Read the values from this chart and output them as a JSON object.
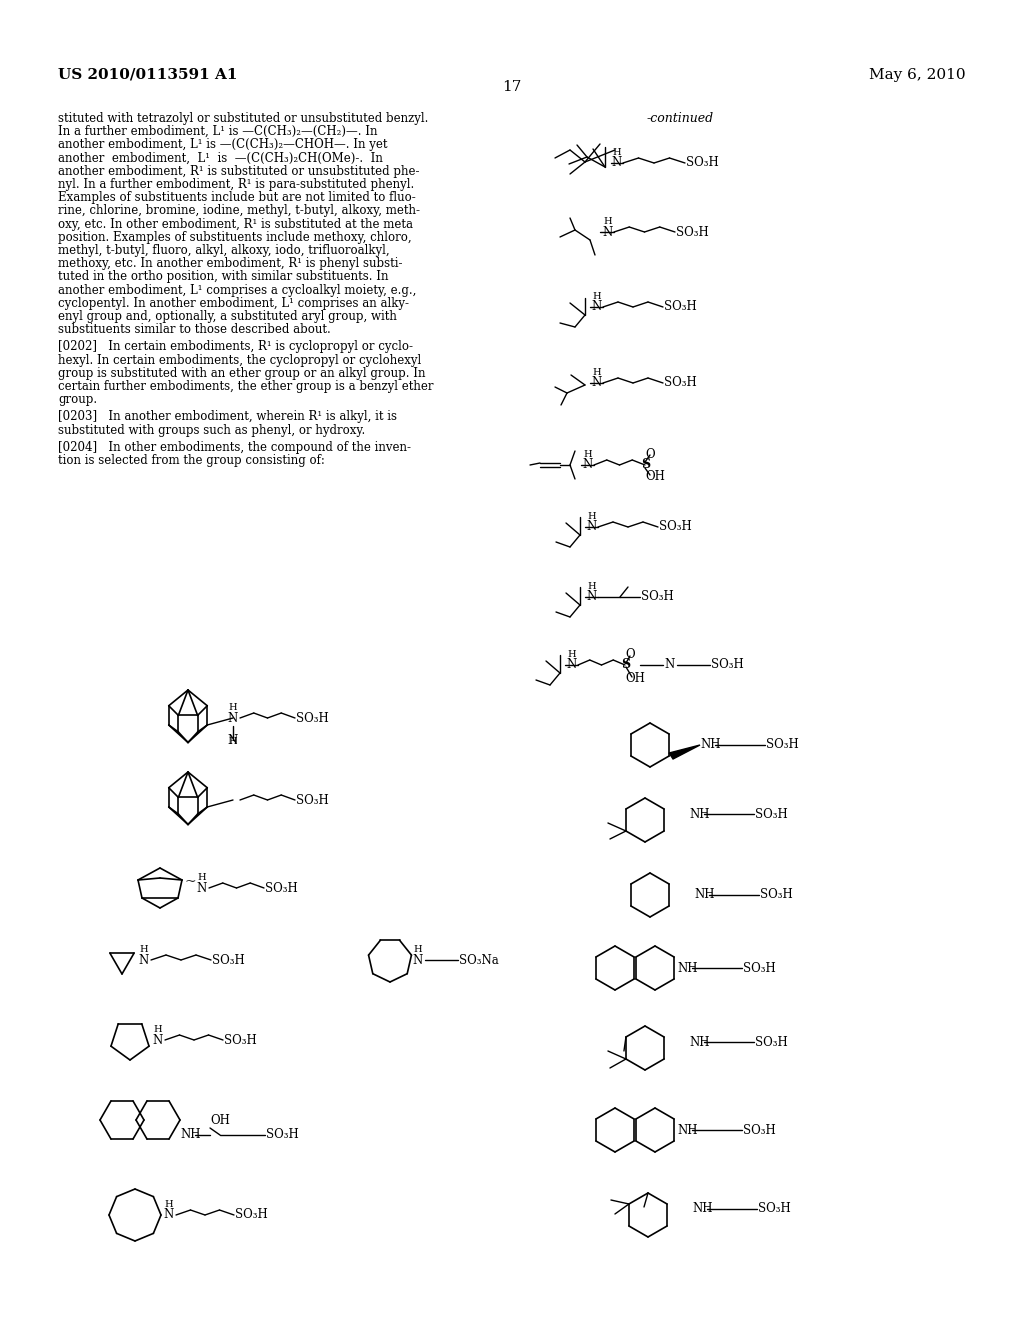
{
  "header_left": "US 2010/0113591 A1",
  "header_right": "May 6, 2010",
  "page_number": "17",
  "background_color": "#ffffff",
  "text_color": "#000000",
  "continued_label": "-continued",
  "body_text_lines": [
    "stituted with tetrazolyl or substituted or unsubstituted benzyl.",
    "In a further embodiment, L¹ is —C(CH₃)₂—(CH₂)—. In",
    "another embodiment, L¹ is —(C(CH₃)₂—CHOH—. In yet",
    "another  embodiment,  L¹  is  —(C(CH₃)₂CH(OMe)-.  In",
    "another embodiment, R¹ is substituted or unsubstituted phe-",
    "nyl. In a further embodiment, R¹ is para-substituted phenyl.",
    "Examples of substituents include but are not limited to fluo-",
    "rine, chlorine, bromine, iodine, methyl, t-butyl, alkoxy, meth-",
    "oxy, etc. In other embodiment, R¹ is substituted at the meta",
    "position. Examples of substituents include methoxy, chloro,",
    "methyl, t-butyl, fluoro, alkyl, alkoxy, iodo, trifluoroalkyl,",
    "methoxy, etc. In another embodiment, R¹ is phenyl substi-",
    "tuted in the ortho position, with similar substituents. In",
    "another embodiment, L¹ comprises a cycloalkyl moiety, e.g.,",
    "cyclopentyl. In another embodiment, L¹ comprises an alky-",
    "enyl group and, optionally, a substituted aryl group, with",
    "substituents similar to those described about."
  ],
  "para_0202_lines": [
    "[0202]   In certain embodiments, R¹ is cyclopropyl or cyclo-",
    "hexyl. In certain embodiments, the cyclopropyl or cyclohexyl",
    "group is substituted with an ether group or an alkyl group. In",
    "certain further embodiments, the ether group is a benzyl ether",
    "group."
  ],
  "para_0203_lines": [
    "[0203]   In another embodiment, wherein R¹ is alkyl, it is",
    "substituted with groups such as phenyl, or hydroxy."
  ],
  "para_0204_lines": [
    "[0204]   In other embodiments, the compound of the inven-",
    "tion is selected from the group consisting of:"
  ],
  "figsize": [
    10.24,
    13.2
  ],
  "dpi": 100
}
